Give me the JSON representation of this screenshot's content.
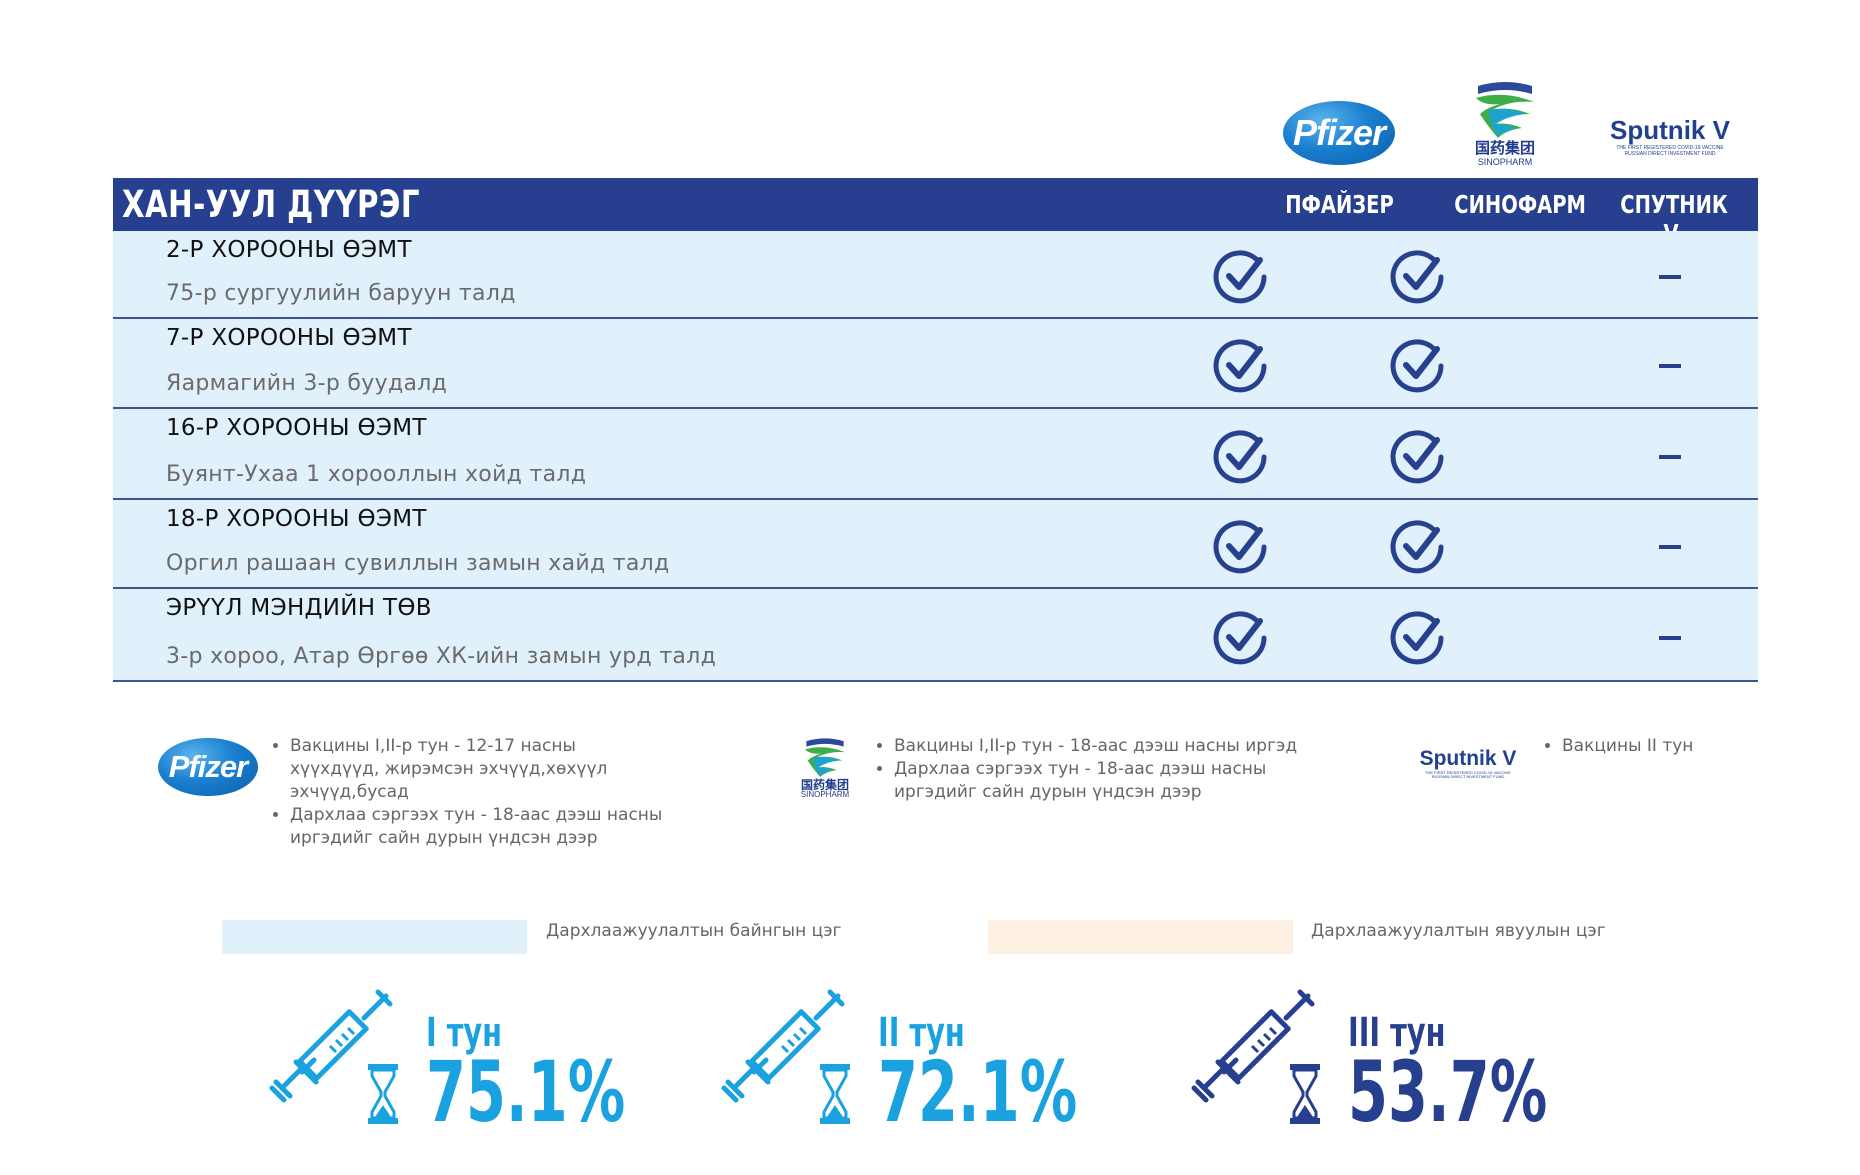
{
  "logos": {
    "pfizer": "Pfizer",
    "sinopharm_cn": "国药集团",
    "sinopharm_en": "SINOPHARM",
    "sputnik": "Sputnik V",
    "sputnik_sub1": "THE FIRST REGISTERED COVID-19 VACCINE",
    "sputnik_sub2": "RUSSIAN DIRECT INVESTMENT FUND"
  },
  "table": {
    "district": "ХАН-УУЛ ДҮҮРЭГ",
    "columns": [
      "ПФАЙЗЕР",
      "СИНОФАРМ",
      "СПУТНИК V"
    ],
    "rows": [
      {
        "name": "2-Р ХОРООНЫ ӨЭМТ",
        "address": "75-р сургуулийн баруун талд",
        "pfizer": true,
        "sinopharm": true,
        "sputnik": false
      },
      {
        "name": "7-Р ХОРООНЫ ӨЭМТ",
        "address": "Яармагийн 3-р буудалд",
        "pfizer": true,
        "sinopharm": true,
        "sputnik": false
      },
      {
        "name": "16-Р ХОРООНЫ ӨЭМТ",
        "address": "Буянт-Ухаа 1 хорооллын хойд талд",
        "pfizer": true,
        "sinopharm": true,
        "sputnik": false
      },
      {
        "name": "18-Р ХОРООНЫ ӨЭМТ",
        "address": "Оргил рашаан сувиллын замын хайд  талд",
        "pfizer": true,
        "sinopharm": true,
        "sputnik": false
      },
      {
        "name": "ЭРҮҮЛ МЭНДИЙН ТӨВ",
        "address": "3-р хороо, Атар Өргөө ХК-ийн замын урд талд",
        "pfizer": true,
        "sinopharm": true,
        "sputnik": false
      }
    ],
    "dash": "–"
  },
  "legend": {
    "pfizer": [
      "Вакцины I,II-р тун - 12-17 насны хүүхдүүд, жирэмсэн эхчүүд,хөхүүл эхчүүд,бусад",
      "Дархлаа сэргээх тун - 18-аас дээш насны иргэдийг сайн дурын үндсэн дээр"
    ],
    "sinopharm": [
      "Вакцины I,II-р тун - 18-аас дээш насны иргэд",
      "Дархлаа сэргээх тун - 18-аас дээш насны иргэдийг сайн дурын үндсэн дээр"
    ],
    "sputnik": [
      "Вакцины II тун"
    ]
  },
  "point_types": {
    "fixed": "Дархлаажуулалтын байнгын цэг",
    "mobile": "Дархлаажуулалтын явуулын цэг",
    "fixed_color": "#e1f1fc",
    "mobile_color": "#fdf0e3"
  },
  "doses": [
    {
      "label": "I тун",
      "value": "75.1%",
      "color": "#1aa1e0"
    },
    {
      "label": "II тун",
      "value": "72.1%",
      "color": "#1aa1e0"
    },
    {
      "label": "III тун",
      "value": "53.7%",
      "color": "#263f8e"
    }
  ]
}
